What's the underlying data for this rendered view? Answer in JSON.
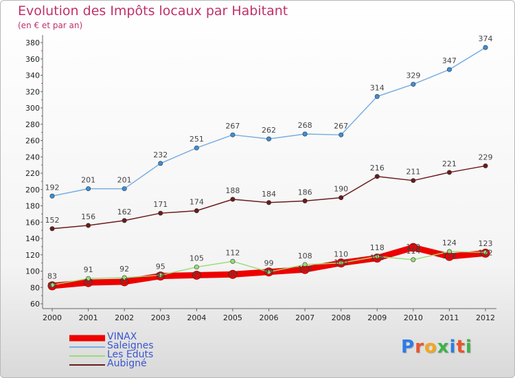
{
  "title": "Evolution des Impôts locaux par Habitant",
  "subtitle": "(en € et par an)",
  "logo": {
    "text": "Proxiti",
    "colors": [
      "#2b7de9",
      "#e8552b",
      "#f2a81d",
      "#3db34a",
      "#2b7de9",
      "#e8552b",
      "#3db34a"
    ]
  },
  "chart_data": {
    "type": "line",
    "title": "Evolution des Impôts locaux par Habitant",
    "subtitle": "(en € et par an)",
    "x": [
      "2000",
      "2001",
      "2002",
      "2003",
      "2004",
      "2005",
      "2006",
      "2007",
      "2008",
      "2009",
      "2010",
      "2011",
      "2012"
    ],
    "ylim": [
      60,
      380
    ],
    "yticks": [
      60,
      80,
      100,
      120,
      140,
      160,
      180,
      200,
      220,
      240,
      260,
      280,
      300,
      320,
      340,
      360,
      380
    ],
    "grid": false,
    "legend_position": "bottom-left",
    "series": [
      {
        "name": "VINAX",
        "color": "#ee0000",
        "values": [
          82,
          86,
          87,
          94,
          95,
          96,
          99,
          102,
          110,
          116,
          129,
          118,
          122
        ]
      },
      {
        "name": "Saleignes",
        "color": "#7aaee0",
        "values": [
          192,
          201,
          201,
          232,
          251,
          267,
          262,
          268,
          267,
          314,
          329,
          347,
          374
        ]
      },
      {
        "name": "Les Eduts",
        "color": "#99dd77",
        "values": [
          83,
          91,
          92,
          95,
          105,
          112,
          99,
          108,
          110,
          118,
          114,
          124,
          123
        ]
      },
      {
        "name": "Aubigné",
        "color": "#6b1b1b",
        "values": [
          152,
          156,
          162,
          171,
          174,
          188,
          184,
          186,
          190,
          216,
          211,
          221,
          229
        ]
      }
    ]
  }
}
